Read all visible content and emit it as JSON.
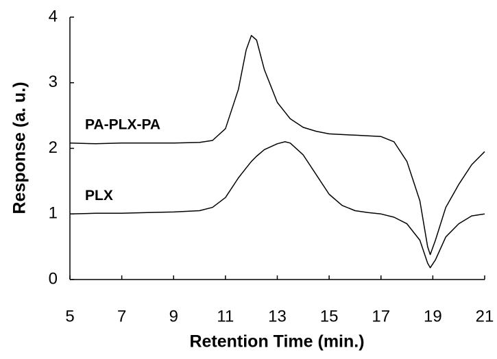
{
  "chart_data": {
    "type": "line",
    "x_label": "Retention Time (min.)",
    "y_label": "Response (a. u.)",
    "x": [
      5,
      6,
      7,
      8,
      9,
      10,
      10.5,
      11,
      11.5,
      11.8,
      12,
      12.2,
      12.5,
      13,
      13.3,
      13.5,
      14,
      14.5,
      15,
      15.5,
      16,
      16.5,
      17,
      17.5,
      18,
      18.5,
      18.8,
      18.9,
      19.1,
      19.5,
      20,
      20.5,
      21
    ],
    "series": [
      {
        "name": "PA-PLX-PA",
        "color": "#000000",
        "values": [
          2.08,
          2.07,
          2.08,
          2.08,
          2.08,
          2.09,
          2.12,
          2.3,
          2.9,
          3.5,
          3.72,
          3.65,
          3.2,
          2.7,
          2.55,
          2.45,
          2.32,
          2.26,
          2.22,
          2.21,
          2.2,
          2.19,
          2.18,
          2.1,
          1.8,
          1.2,
          0.5,
          0.38,
          0.6,
          1.1,
          1.45,
          1.75,
          1.95
        ]
      },
      {
        "name": "PLX",
        "color": "#000000",
        "values": [
          1.0,
          1.01,
          1.01,
          1.02,
          1.03,
          1.05,
          1.1,
          1.25,
          1.55,
          1.7,
          1.8,
          1.88,
          1.98,
          2.07,
          2.1,
          2.08,
          1.9,
          1.6,
          1.3,
          1.13,
          1.05,
          1.02,
          1.0,
          0.95,
          0.85,
          0.6,
          0.25,
          0.18,
          0.3,
          0.65,
          0.85,
          0.97,
          1.0
        ]
      }
    ],
    "xlim": [
      5,
      21
    ],
    "xticks": [
      5,
      7,
      9,
      11,
      13,
      15,
      17,
      19,
      21
    ],
    "ylim": [
      0,
      4
    ],
    "yticks": [
      0,
      1,
      2,
      3,
      4
    ],
    "grid": false
  }
}
